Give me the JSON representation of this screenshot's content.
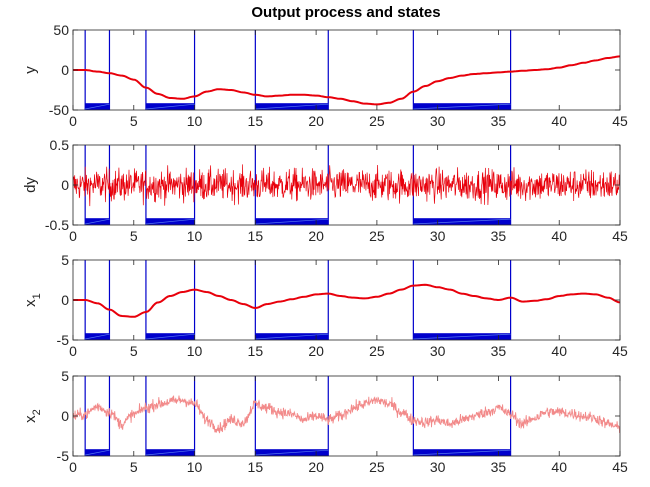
{
  "figure": {
    "title": "Output process and states"
  },
  "chart_data": [
    {
      "type": "line",
      "ylabel": "y",
      "ylabel_sub": "",
      "xlim": [
        0,
        45
      ],
      "ylim": [
        -50,
        50
      ],
      "xticks": [
        0,
        5,
        10,
        15,
        20,
        25,
        30,
        35,
        40,
        45
      ],
      "yticks": [
        -50,
        0,
        50
      ],
      "ytick_labels": [
        "-50",
        "0",
        "50"
      ],
      "grid": false,
      "style": "smooth",
      "series": [
        {
          "color": "#e8000b",
          "x": [
            0,
            1,
            2,
            3,
            4,
            5,
            6,
            7,
            8,
            9,
            10,
            11,
            12,
            13,
            14,
            15,
            16,
            17,
            18,
            19,
            20,
            21,
            22,
            23,
            24,
            25,
            26,
            27,
            28,
            29,
            30,
            31,
            32,
            33,
            34,
            35,
            36,
            37,
            38,
            39,
            40,
            41,
            42,
            43,
            44,
            45
          ],
          "y": [
            0,
            0,
            -2,
            -4,
            -7,
            -12,
            -22,
            -30,
            -35,
            -36,
            -33,
            -27,
            -24,
            -25,
            -28,
            -31,
            -33,
            -32,
            -31,
            -31,
            -32,
            -34,
            -36,
            -39,
            -42,
            -43,
            -41,
            -36,
            -27,
            -20,
            -14,
            -10,
            -7,
            -5,
            -4,
            -3,
            -2,
            -1,
            0,
            1,
            3,
            6,
            9,
            12,
            15,
            17
          ]
        }
      ],
      "intervals": [
        [
          1,
          3
        ],
        [
          6,
          10
        ],
        [
          15,
          21
        ],
        [
          28,
          36
        ]
      ],
      "interval_color": "#0000cc"
    },
    {
      "type": "line",
      "ylabel": "dy",
      "ylabel_sub": "",
      "xlim": [
        0,
        45
      ],
      "ylim": [
        -0.5,
        0.5
      ],
      "xticks": [
        0,
        5,
        10,
        15,
        20,
        25,
        30,
        35,
        40,
        45
      ],
      "yticks": [
        -0.5,
        0,
        0.5
      ],
      "ytick_labels": [
        "-0.5",
        "0",
        "0.5"
      ],
      "grid": false,
      "style": "noise",
      "noise_amplitude": 0.1,
      "series": [
        {
          "color": "#e8000b",
          "x": [
            0,
            45
          ],
          "y": [
            0,
            0
          ]
        }
      ],
      "intervals": [
        [
          1,
          3
        ],
        [
          6,
          10
        ],
        [
          15,
          21
        ],
        [
          28,
          36
        ]
      ],
      "interval_color": "#0000cc"
    },
    {
      "type": "line",
      "ylabel": "x",
      "ylabel_sub": "1",
      "xlim": [
        0,
        45
      ],
      "ylim": [
        -5,
        5
      ],
      "xticks": [
        0,
        5,
        10,
        15,
        20,
        25,
        30,
        35,
        40,
        45
      ],
      "yticks": [
        -5,
        0,
        5
      ],
      "ytick_labels": [
        "-5",
        "0",
        "5"
      ],
      "grid": false,
      "style": "smooth",
      "series": [
        {
          "color": "#e8000b",
          "x": [
            0,
            1,
            2,
            3,
            4,
            5,
            6,
            7,
            8,
            9,
            10,
            11,
            12,
            13,
            14,
            15,
            16,
            17,
            18,
            19,
            20,
            21,
            22,
            23,
            24,
            25,
            26,
            27,
            28,
            29,
            30,
            31,
            32,
            33,
            34,
            35,
            36,
            37,
            38,
            39,
            40,
            41,
            42,
            43,
            44,
            45
          ],
          "y": [
            0,
            0,
            -0.4,
            -1.2,
            -2.0,
            -2.1,
            -1.5,
            -0.3,
            0.5,
            1.0,
            1.3,
            1.0,
            0.5,
            0,
            -0.5,
            -1.0,
            -0.5,
            -0.2,
            0.1,
            0.4,
            0.7,
            0.8,
            0.5,
            0.3,
            0.2,
            0.4,
            0.8,
            1.3,
            1.8,
            1.9,
            1.6,
            1.3,
            0.8,
            0.5,
            0.2,
            0,
            0.3,
            -0.2,
            -0.1,
            0.1,
            0.5,
            0.7,
            0.8,
            0.7,
            0.3,
            -0.3
          ]
        }
      ],
      "intervals": [
        [
          1,
          3
        ],
        [
          6,
          10
        ],
        [
          15,
          21
        ],
        [
          28,
          36
        ]
      ],
      "interval_color": "#0000cc"
    },
    {
      "type": "line",
      "ylabel": "x",
      "ylabel_sub": "2",
      "xlim": [
        0,
        45
      ],
      "ylim": [
        -5,
        5
      ],
      "xticks": [
        0,
        5,
        10,
        15,
        20,
        25,
        30,
        35,
        40,
        45
      ],
      "yticks": [
        -5,
        0,
        5
      ],
      "ytick_labels": [
        "-5",
        "0",
        "5"
      ],
      "grid": false,
      "style": "noisy",
      "noise_amplitude": 0.35,
      "series": [
        {
          "color": "#f28a8a",
          "x": [
            0,
            1,
            2,
            3,
            4,
            5,
            6,
            7,
            8,
            9,
            10,
            11,
            12,
            13,
            14,
            15,
            16,
            17,
            18,
            19,
            20,
            21,
            22,
            23,
            24,
            25,
            26,
            27,
            28,
            29,
            30,
            31,
            32,
            33,
            34,
            35,
            36,
            37,
            38,
            39,
            40,
            41,
            42,
            43,
            44,
            45
          ],
          "y": [
            0,
            0.2,
            1.2,
            0.5,
            -1.0,
            0.2,
            1.0,
            1.5,
            1.8,
            2.0,
            1.5,
            -0.5,
            -1.5,
            -0.5,
            -0.8,
            1.5,
            1.0,
            0.5,
            0.2,
            -0.5,
            0,
            -0.5,
            0,
            1.0,
            1.5,
            2.0,
            1.5,
            0.5,
            -0.5,
            -0.8,
            -0.5,
            -1.0,
            -0.5,
            0,
            0.5,
            1.0,
            0.2,
            -1.0,
            -0.2,
            0.5,
            0.5,
            0.3,
            0,
            -0.3,
            -1.0,
            -1.5
          ]
        }
      ],
      "intervals": [
        [
          1,
          3
        ],
        [
          6,
          10
        ],
        [
          15,
          21
        ],
        [
          28,
          36
        ]
      ],
      "interval_color": "#0000cc"
    }
  ]
}
